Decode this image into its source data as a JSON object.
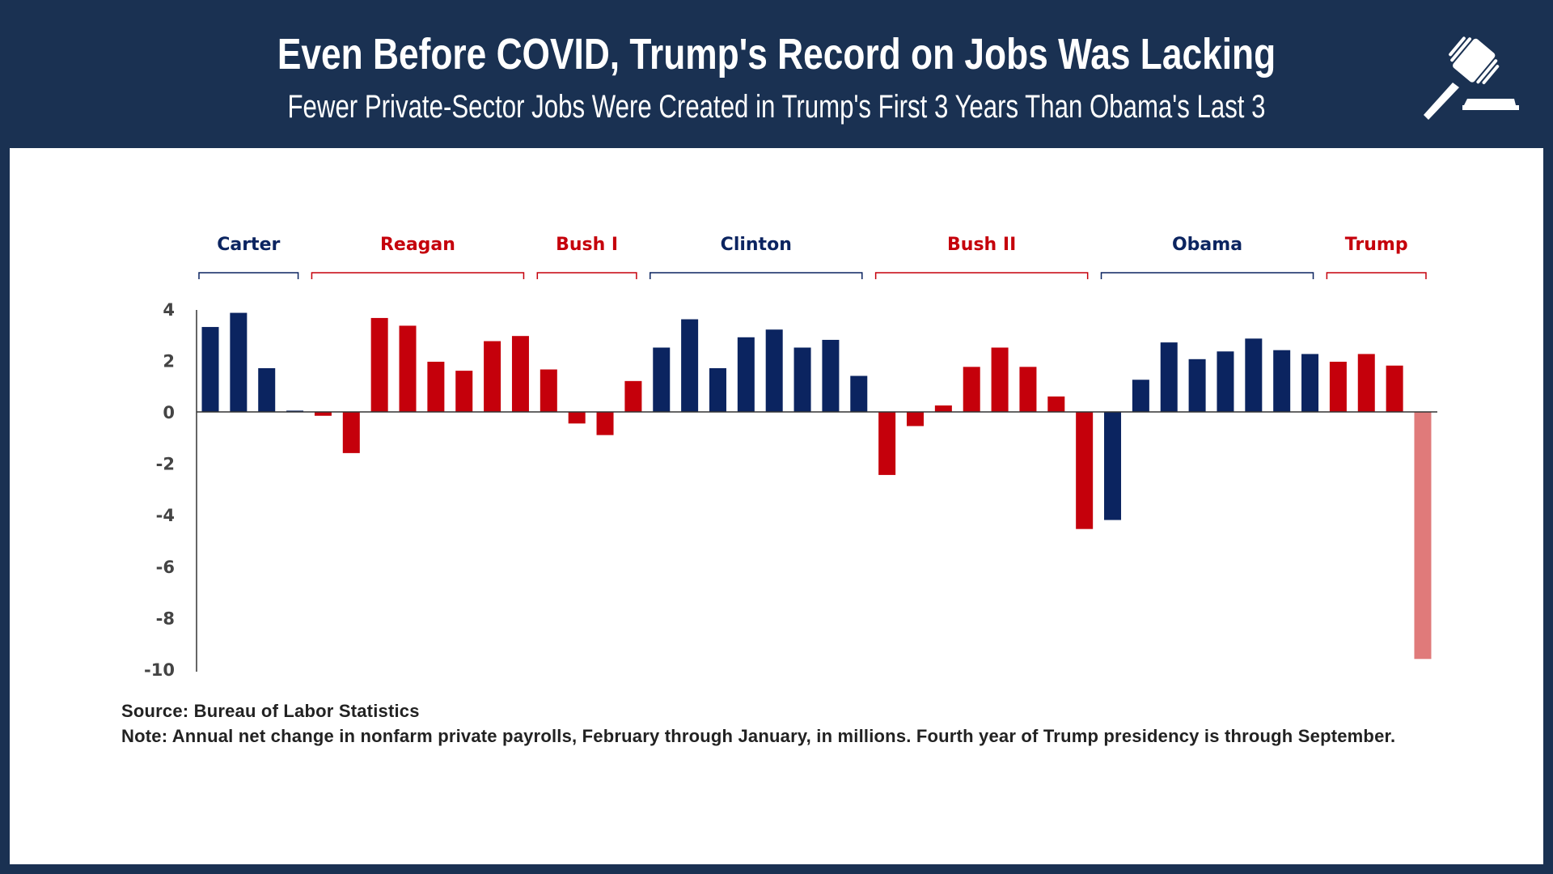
{
  "header": {
    "title": "Even Before COVID, Trump's Record on Jobs Was Lacking",
    "subtitle": "Fewer Private-Sector Jobs Were Created in Trump's First 3 Years Than Obama's Last 3",
    "icon": "gavel-icon"
  },
  "footer": {
    "source": "Source: Bureau of Labor Statistics",
    "note": "Note: Annual net change in nonfarm private payrolls, February through January, in millions. Fourth year of Trump presidency is through September."
  },
  "colors": {
    "header": "#1a3152",
    "democrat": "#0b2460",
    "republican": "#c5000b",
    "partial": "#e07a7a"
  },
  "chart_data": {
    "type": "bar",
    "title": "",
    "xlabel": "",
    "ylabel": "",
    "ylim": [
      -10,
      4
    ],
    "yticks": [
      "4",
      "2",
      "0",
      "-2",
      "-4",
      "-6",
      "-8",
      "-10"
    ],
    "ytick_values": [
      4,
      2,
      0,
      -2,
      -4,
      -6,
      -8,
      -10
    ],
    "groups": [
      {
        "name": "Carter",
        "party": "democrat",
        "values": [
          3.3,
          3.85,
          1.7,
          0.05
        ]
      },
      {
        "name": "Reagan",
        "party": "republican",
        "values": [
          -0.15,
          -1.6,
          3.65,
          3.35,
          1.95,
          1.6,
          2.75,
          2.95
        ]
      },
      {
        "name": "Bush I",
        "party": "republican",
        "values": [
          1.65,
          -0.45,
          -0.9,
          1.2
        ]
      },
      {
        "name": "Clinton",
        "party": "democrat",
        "values": [
          2.5,
          3.6,
          1.7,
          2.9,
          3.2,
          2.5,
          2.8,
          1.4
        ]
      },
      {
        "name": "Bush II",
        "party": "republican",
        "values": [
          -2.45,
          -0.55,
          0.25,
          1.75,
          2.5,
          1.75,
          0.6,
          -4.55
        ]
      },
      {
        "name": "Obama",
        "party": "democrat",
        "values": [
          -4.2,
          1.25,
          2.7,
          2.05,
          2.35,
          2.85,
          2.4,
          2.25
        ]
      },
      {
        "name": "Trump",
        "party": "republican",
        "values": [
          1.95,
          2.25,
          1.8,
          -9.6
        ],
        "partial_last": true
      }
    ],
    "grid": false,
    "legend": "none"
  }
}
